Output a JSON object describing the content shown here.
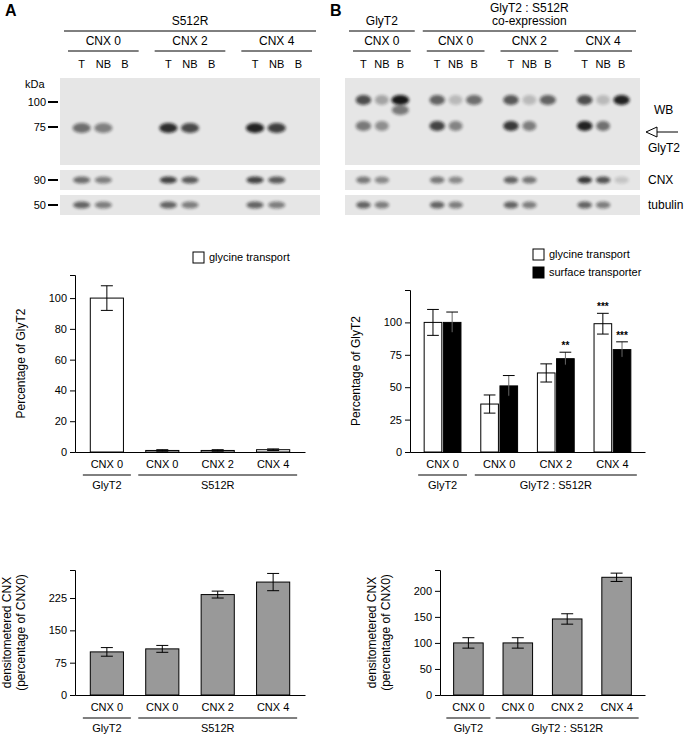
{
  "figure": {
    "blots": [
      {
        "panel": "A",
        "headers": [
          {
            "lines": [
              "S512R"
            ],
            "span": 3
          }
        ],
        "groups": [
          "CNX 0",
          "CNX 2",
          "CNX 4"
        ],
        "lanes": [
          "T",
          "NB",
          "B"
        ],
        "marker_unit": "kDa",
        "markers": [
          100,
          75
        ],
        "strip_markers": [
          90,
          50
        ]
      },
      {
        "panel": "B",
        "headers": [
          {
            "lines": [
              "GlyT2"
            ],
            "span": 1
          },
          {
            "lines": [
              "GlyT2 : S512R",
              "co-expression"
            ],
            "span": 3
          }
        ],
        "groups": [
          "CNX 0",
          "CNX 0",
          "CNX 2",
          "CNX 4"
        ],
        "lanes": [
          "T",
          "NB",
          "B"
        ],
        "method": "WB",
        "rows": [
          "GlyT2",
          "CNX",
          "tubulin"
        ]
      }
    ]
  },
  "chart_data": [
    {
      "type": "bar",
      "ylabel": [
        "Percentage of GlyT2"
      ],
      "categories": [
        "CNX 0",
        "CNX 0",
        "CNX 2",
        "CNX 4"
      ],
      "groups": [
        {
          "name": "GlyT2",
          "span": 1
        },
        {
          "name": "S512R",
          "span": 3
        }
      ],
      "series": [
        {
          "name": "glycine transport",
          "color": "#ffffff",
          "values": [
            100,
            1,
            1,
            1.5
          ],
          "errors": [
            8,
            0.5,
            0.5,
            0.5
          ]
        }
      ],
      "ylim": [
        0,
        115
      ],
      "yticks": [
        0,
        20,
        40,
        60,
        80,
        100
      ],
      "legend": "top-right"
    },
    {
      "type": "bar",
      "ylabel": [
        "Percentage of GlyT2"
      ],
      "categories": [
        "CNX 0",
        "CNX 0",
        "CNX 2",
        "CNX 4"
      ],
      "groups": [
        {
          "name": "GlyT2",
          "span": 1
        },
        {
          "name": "GlyT2 : S512R",
          "span": 3
        }
      ],
      "series": [
        {
          "name": "glycine transport",
          "color": "#ffffff",
          "values": [
            100,
            37,
            61,
            99
          ],
          "errors": [
            10,
            7,
            7,
            8
          ]
        },
        {
          "name": "surface transporter",
          "color": "#000000",
          "values": [
            100,
            51,
            72,
            79
          ],
          "errors": [
            8,
            8,
            5,
            6
          ]
        }
      ],
      "annotations": [
        {
          "series": 1,
          "index": 2,
          "text": "**"
        },
        {
          "series": 0,
          "index": 3,
          "text": "***"
        },
        {
          "series": 1,
          "index": 3,
          "text": "***"
        }
      ],
      "ylim": [
        0,
        125
      ],
      "yticks": [
        0,
        25,
        50,
        75,
        100
      ],
      "legend": "top-right"
    },
    {
      "type": "bar",
      "ylabel": [
        "densitometered CNX",
        "(percentage of CNX0)"
      ],
      "categories": [
        "CNX 0",
        "CNX 0",
        "CNX 2",
        "CNX 4"
      ],
      "groups": [
        {
          "name": "GlyT2",
          "span": 1
        },
        {
          "name": "S512R",
          "span": 3
        }
      ],
      "color": "#999999",
      "values": [
        100,
        107,
        233,
        262
      ],
      "errors": [
        10,
        8,
        8,
        20
      ],
      "ylim": [
        0,
        290
      ],
      "yticks": [
        0,
        75,
        150,
        225
      ]
    },
    {
      "type": "bar",
      "ylabel": [
        "densitometered CNX",
        "(percentage of CNX0)"
      ],
      "categories": [
        "CNX 0",
        "CNX 0",
        "CNX 2",
        "CNX 4"
      ],
      "groups": [
        {
          "name": "GlyT2",
          "span": 1
        },
        {
          "name": "GlyT2 : S512R",
          "span": 3
        }
      ],
      "color": "#999999",
      "values": [
        100,
        100,
        146,
        226
      ],
      "errors": [
        10,
        10,
        10,
        8
      ],
      "ylim": [
        0,
        240
      ],
      "yticks": [
        0,
        50,
        100,
        150,
        200
      ]
    }
  ]
}
